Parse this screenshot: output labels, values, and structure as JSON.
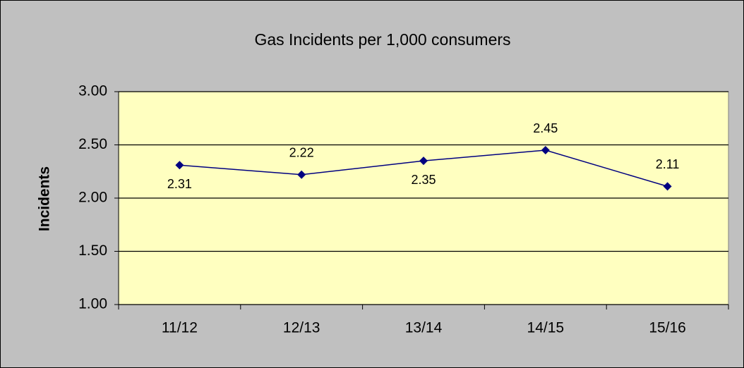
{
  "chart_data": {
    "type": "line",
    "title": "Gas Incidents per 1,000 consumers",
    "y_label": "Incidents",
    "categories": [
      "11/12",
      "12/13",
      "13/14",
      "14/15",
      "15/16"
    ],
    "series": [
      {
        "name": "Incidents",
        "color": "#000080",
        "values": [
          2.31,
          2.22,
          2.35,
          2.45,
          2.11
        ]
      }
    ],
    "ylim": [
      1,
      3
    ],
    "yticks": [
      {
        "value": 1,
        "label": "1.00"
      },
      {
        "value": 1.5,
        "label": "1.50"
      },
      {
        "value": 2,
        "label": "2.00"
      },
      {
        "value": 2.5,
        "label": "2.50"
      },
      {
        "value": 3,
        "label": "3.00"
      }
    ],
    "grid": true
  }
}
